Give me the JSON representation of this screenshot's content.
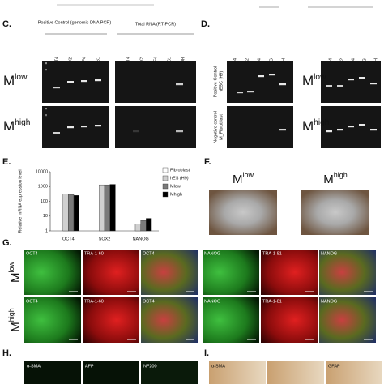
{
  "panels": {
    "C": {
      "label": "C.",
      "header_left": "Positive Control (genomic DNA PCR)",
      "header_right": "Total RNA (RT-PCR)",
      "lanes_left": [
        "OCT4",
        "SOX2",
        "KLF4",
        "GUS1"
      ],
      "lanes_right": [
        "OCT4",
        "SOX2",
        "KLF4",
        "GUS1",
        "GAPDH"
      ],
      "rows": [
        {
          "base": "M",
          "sup": "low"
        },
        {
          "base": "M",
          "sup": "high"
        }
      ]
    },
    "D": {
      "label": "D.",
      "lanes_left": [
        "OCT4",
        "SOX2",
        "DPPA4",
        "NANOG",
        "GAPDH"
      ],
      "lanes_right": [
        "OCT4",
        "SOX2",
        "DPPA4",
        "NANOG",
        "GAPDH"
      ],
      "side_labels": [
        [
          "Positive Control",
          "hESC (H9)"
        ],
        [
          "Negative control",
          "M_Fibroblast"
        ]
      ],
      "rows": [
        {
          "base": "M",
          "sup": "low"
        },
        {
          "base": "M",
          "sup": "high"
        }
      ]
    },
    "E": {
      "label": "E."
    },
    "F": {
      "label": "F.",
      "images": [
        {
          "base": "M",
          "sup": "low"
        },
        {
          "base": "M",
          "sup": "high"
        }
      ]
    },
    "G": {
      "label": "G.",
      "rows": [
        {
          "base": "M",
          "sup": "low"
        },
        {
          "base": "M",
          "sup": "high"
        }
      ],
      "left_images": [
        "OCT4",
        "TRA-1-60",
        "OCT4"
      ],
      "right_images": [
        "NANOG",
        "TRA-1-81",
        "NANOG"
      ]
    },
    "H": {
      "label": "H.",
      "images": [
        "α-SMA",
        "AFP",
        "NF200"
      ]
    },
    "I": {
      "label": "I.",
      "images": [
        "α-SMA",
        "GFAP"
      ]
    }
  },
  "chart_data": {
    "type": "bar",
    "ylabel": "Relative mRNA expression level",
    "log_scale": true,
    "categories": [
      "OCT4",
      "SOX2",
      "NANOG"
    ],
    "series": [
      {
        "name": "Fibroblast",
        "color": "#ffffff",
        "values": [
          1,
          1,
          1
        ]
      },
      {
        "name": "hES (H9)",
        "color": "#d0d0d0",
        "values": [
          300,
          1300,
          3
        ]
      },
      {
        "name": "Mlow",
        "color": "#7a7a7a",
        "values": [
          280,
          1300,
          5
        ]
      },
      {
        "name": "Mhigh",
        "color": "#000000",
        "values": [
          250,
          1400,
          7
        ]
      }
    ],
    "ylim": [
      1,
      10000
    ],
    "yticks": [
      1,
      10,
      100,
      1000,
      10000
    ]
  }
}
